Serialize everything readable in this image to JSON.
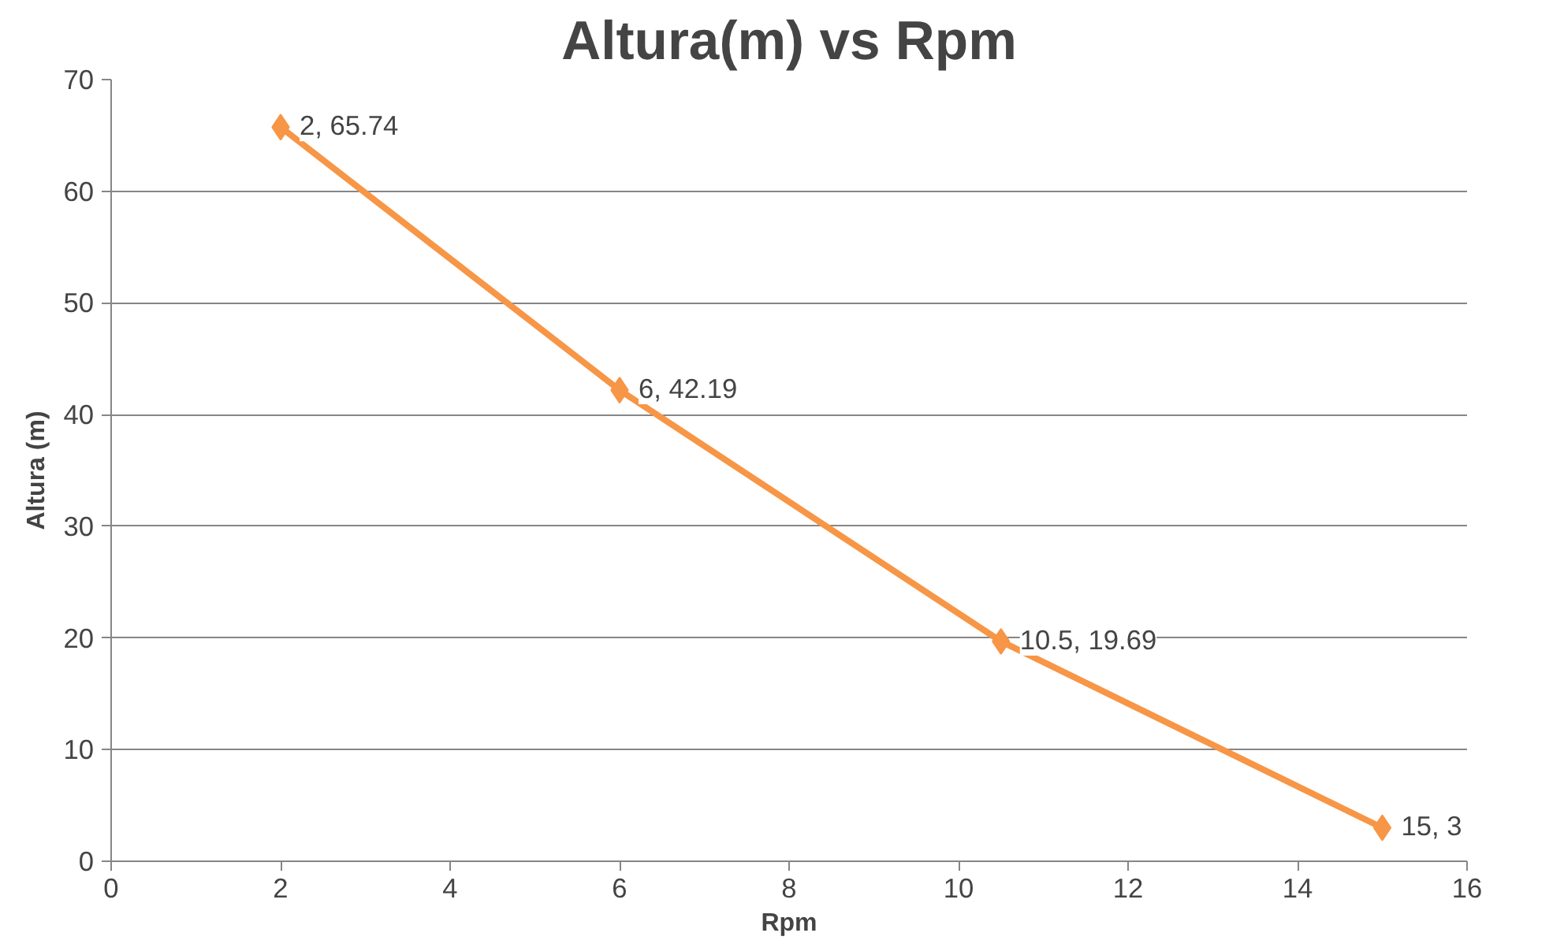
{
  "chart_data": {
    "type": "line",
    "title": "Altura(m) vs Rpm",
    "xlabel": "Rpm",
    "ylabel": "Altura (m)",
    "x": [
      2,
      6,
      10.5,
      15
    ],
    "series": [
      {
        "color": "#f79646",
        "values": [
          65.74,
          42.19,
          19.69,
          3
        ],
        "value_labels": [
          "2, 65.74",
          "6, 42.19",
          "10.5, 19.69",
          "15, 3"
        ]
      }
    ],
    "xlim": [
      0,
      16
    ],
    "xticks": [
      0,
      2,
      4,
      6,
      8,
      10,
      12,
      14,
      16
    ],
    "ylim": [
      0,
      70
    ],
    "yticks": [
      0,
      10,
      20,
      30,
      40,
      50,
      60,
      70
    ],
    "grid": "y",
    "marker": "diamond",
    "line_style": "solid"
  }
}
